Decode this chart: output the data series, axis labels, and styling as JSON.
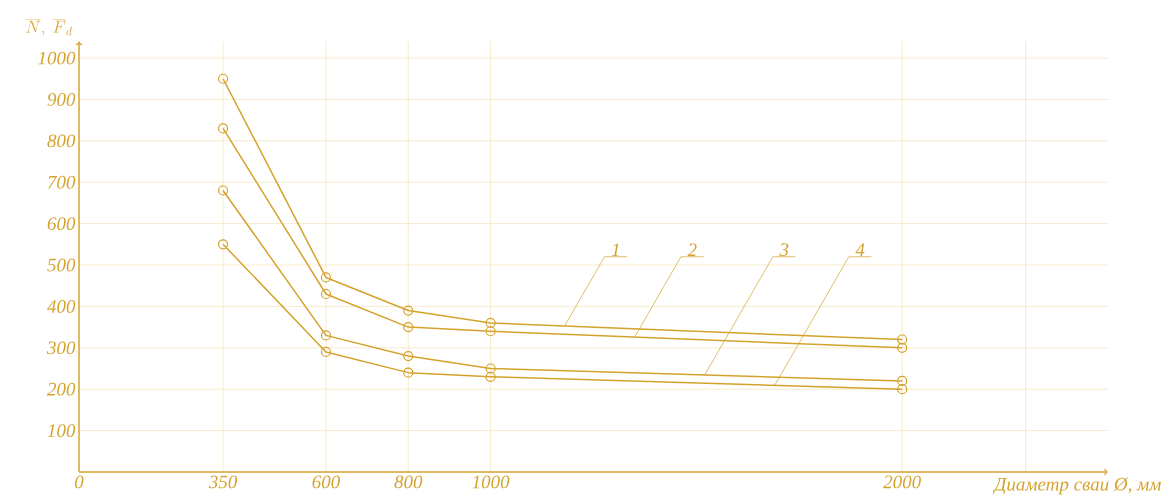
{
  "chart_data": {
    "type": "line",
    "xlabel": "Диаметр сваи Ø, мм",
    "ylabel": "\\overline{N},\\ \\overline{F}_{d}",
    "x": [
      350,
      600,
      800,
      1000,
      2000
    ],
    "series": [
      {
        "color": "#d4a22c",
        "values": [
          950,
          470,
          390,
          360,
          320
        ]
      },
      {
        "color": "#d4a22c",
        "values": [
          830,
          430,
          350,
          340,
          300
        ]
      },
      {
        "color": "#d4a22c",
        "values": [
          680,
          330,
          280,
          250,
          220
        ]
      },
      {
        "color": "#d4a22c",
        "values": [
          550,
          290,
          240,
          230,
          200
        ]
      }
    ],
    "annotations": [
      {
        "text": "1",
        "x": 1180,
        "y": 353
      },
      {
        "text": "2",
        "x": 1350,
        "y": 326
      },
      {
        "text": "3",
        "x": 1520,
        "y": 234
      },
      {
        "text": "4",
        "x": 1690,
        "y": 209
      }
    ],
    "xlim": [
      0,
      2500
    ],
    "ylim": [
      0,
      1040
    ],
    "xticks": [
      0,
      350,
      600,
      800,
      1000,
      2000,
      {
        "value": 2300,
        "label": null
      }
    ],
    "yticks": [
      100,
      200,
      300,
      400,
      500,
      600,
      700,
      800,
      900,
      1000
    ],
    "grid": true,
    "marker": "circle",
    "line_style": "solid"
  }
}
